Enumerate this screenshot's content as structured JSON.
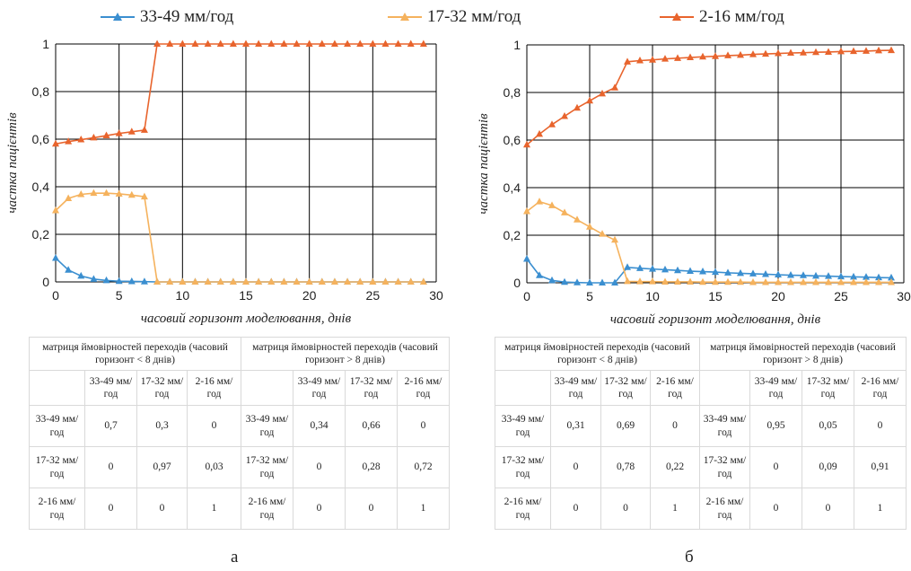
{
  "legend": [
    {
      "name": "33-49 мм/год",
      "color": "#3b8fd0"
    },
    {
      "name": "17-32 мм/год",
      "color": "#f5b25d"
    },
    {
      "name": "2-16 мм/год",
      "color": "#e8642d"
    }
  ],
  "chart_data": [
    {
      "type": "line",
      "panel": "a",
      "xlabel": "часовий горизонт моделювання, днів",
      "ylabel": "частка пацієнтів",
      "xlim": [
        0,
        30
      ],
      "ylim": [
        0,
        1
      ],
      "x_ticks": [
        "0",
        "5",
        "10",
        "15",
        "20",
        "25",
        "30"
      ],
      "y_ticks": [
        "0",
        "0,2",
        "0,4",
        "0,6",
        "0,8",
        "1"
      ],
      "grid": true,
      "marker": "triangle",
      "x": [
        0,
        1,
        2,
        3,
        4,
        5,
        6,
        7,
        8,
        9,
        10,
        11,
        12,
        13,
        14,
        15,
        16,
        17,
        18,
        19,
        20,
        21,
        22,
        23,
        24,
        25,
        26,
        27,
        28,
        29
      ],
      "series": [
        {
          "name": "33-49 мм/год",
          "color": "#3b8fd0",
          "values": [
            0.1,
            0.05,
            0.025,
            0.012,
            0.006,
            0.003,
            0.002,
            0.001,
            0,
            0,
            0,
            0,
            0,
            0,
            0,
            0,
            0,
            0,
            0,
            0,
            0,
            0,
            0,
            0,
            0,
            0,
            0,
            0,
            0,
            0
          ]
        },
        {
          "name": "17-32 мм/год",
          "color": "#f5b25d",
          "values": [
            0.3,
            0.351,
            0.368,
            0.373,
            0.373,
            0.37,
            0.365,
            0.358,
            0,
            0,
            0,
            0,
            0,
            0,
            0,
            0,
            0,
            0,
            0,
            0,
            0,
            0,
            0,
            0,
            0,
            0,
            0,
            0,
            0,
            0
          ]
        },
        {
          "name": "2-16 мм/год",
          "color": "#e8642d",
          "values": [
            0.58,
            0.59,
            0.598,
            0.606,
            0.615,
            0.624,
            0.631,
            0.638,
            1,
            1,
            1,
            1,
            1,
            1,
            1,
            1,
            1,
            1,
            1,
            1,
            1,
            1,
            1,
            1,
            1,
            1,
            1,
            1,
            1,
            1
          ]
        }
      ]
    },
    {
      "type": "line",
      "panel": "б",
      "xlabel": "часовий горизонт моделювання, днів",
      "ylabel": "частка пацієнтів",
      "xlim": [
        0,
        30
      ],
      "ylim": [
        0,
        1
      ],
      "x_ticks": [
        "0",
        "5",
        "10",
        "15",
        "20",
        "25",
        "30"
      ],
      "y_ticks": [
        "0",
        "0,2",
        "0,4",
        "0,6",
        "0,8",
        "1"
      ],
      "grid": true,
      "marker": "triangle",
      "x": [
        0,
        1,
        2,
        3,
        4,
        5,
        6,
        7,
        8,
        9,
        10,
        11,
        12,
        13,
        14,
        15,
        16,
        17,
        18,
        19,
        20,
        21,
        22,
        23,
        24,
        25,
        26,
        27,
        28,
        29
      ],
      "series": [
        {
          "name": "33-49 мм/год",
          "color": "#3b8fd0",
          "values": [
            0.1,
            0.031,
            0.01,
            0.003,
            0.001,
            0,
            0,
            0,
            0.065,
            0.061,
            0.058,
            0.055,
            0.052,
            0.049,
            0.047,
            0.045,
            0.042,
            0.04,
            0.038,
            0.036,
            0.034,
            0.032,
            0.031,
            0.029,
            0.028,
            0.026,
            0.025,
            0.024,
            0.022,
            0.021
          ]
        },
        {
          "name": "17-32 мм/год",
          "color": "#f5b25d",
          "values": [
            0.3,
            0.341,
            0.325,
            0.295,
            0.265,
            0.235,
            0.205,
            0.18,
            0.006,
            0.005,
            0.005,
            0.004,
            0.004,
            0.004,
            0.003,
            0.003,
            0.003,
            0.003,
            0.002,
            0.002,
            0.002,
            0.002,
            0.002,
            0.002,
            0.002,
            0.002,
            0.002,
            0.002,
            0.002,
            0.002
          ]
        },
        {
          "name": "2-16 мм/год",
          "color": "#e8642d",
          "values": [
            0.58,
            0.625,
            0.665,
            0.7,
            0.735,
            0.765,
            0.795,
            0.82,
            0.929,
            0.934,
            0.937,
            0.941,
            0.944,
            0.947,
            0.95,
            0.952,
            0.955,
            0.957,
            0.96,
            0.962,
            0.964,
            0.966,
            0.967,
            0.969,
            0.97,
            0.972,
            0.973,
            0.974,
            0.976,
            0.977
          ]
        }
      ]
    }
  ],
  "tables": [
    {
      "left_title": "матриця ймовірностей переходів (часовий горизонт < 8 днів)",
      "right_title": "матриця ймовірностей переходів (часовий горизонт > 8 днів)",
      "cols": [
        "33-49 мм/год",
        "17-32 мм/год",
        "2-16 мм/год"
      ],
      "rows": [
        {
          "label": "33-49 мм/год",
          "left": [
            "0,7",
            "0,3",
            "0"
          ],
          "right_label": "33-49 мм/год",
          "right": [
            "0,34",
            "0,66",
            "0"
          ]
        },
        {
          "label": "17-32 мм/год",
          "left": [
            "0",
            "0,97",
            "0,03"
          ],
          "right_label": "17-32 мм/год",
          "right": [
            "0",
            "0,28",
            "0,72"
          ]
        },
        {
          "label": "2-16 мм/год",
          "left": [
            "0",
            "0",
            "1"
          ],
          "right_label": "2-16 мм/год",
          "right": [
            "0",
            "0",
            "1"
          ]
        }
      ]
    },
    {
      "left_title": "матриця ймовірностей переходів (часовий горизонт < 8 днів)",
      "right_title": "матриця ймовірностей переходів (часовий горизонт > 8 днів)",
      "cols": [
        "33-49 мм/год",
        "17-32 мм/год",
        "2-16 мм/год"
      ],
      "rows": [
        {
          "label": "33-49 мм/год",
          "left": [
            "0,31",
            "0,69",
            "0"
          ],
          "right_label": "33-49 мм/год",
          "right": [
            "0,95",
            "0,05",
            "0"
          ]
        },
        {
          "label": "17-32 мм/год",
          "left": [
            "0",
            "0,78",
            "0,22"
          ],
          "right_label": "17-32 мм/год",
          "right": [
            "0",
            "0,09",
            "0,91"
          ]
        },
        {
          "label": "2-16 мм/год",
          "left": [
            "0",
            "0",
            "1"
          ],
          "right_label": "2-16 мм/год",
          "right": [
            "0",
            "0",
            "1"
          ]
        }
      ]
    }
  ],
  "panel_labels": [
    "а",
    "б"
  ]
}
